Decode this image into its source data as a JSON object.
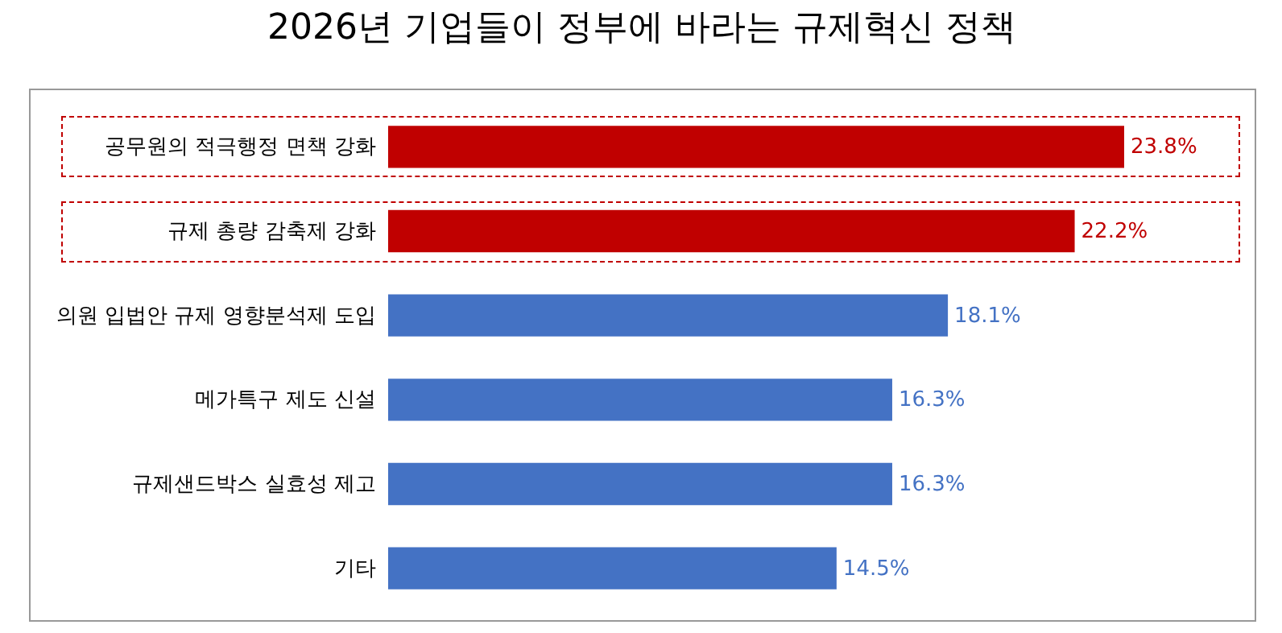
{
  "chart_data": {
    "type": "bar",
    "orientation": "horizontal",
    "title": "2026년 기업들이 정부에 바라는 규제혁신 정책",
    "categories": [
      "공무원의 적극행정 면책 강화",
      "규제 총량 감축제 강화",
      "의원 입법안 규제 영향분석제 도입",
      "메가특구 제도 신설",
      "규제샌드박스 실효성 제고",
      "기타"
    ],
    "values": [
      23.8,
      22.2,
      18.1,
      16.3,
      16.3,
      14.5
    ],
    "colors": [
      "#c00000",
      "#c00000",
      "#4472c4",
      "#4472c4",
      "#4472c4",
      "#4472c4"
    ],
    "value_labels": [
      "23.8%",
      "22.2%",
      "18.1%",
      "16.3%",
      "16.3%",
      "14.5%"
    ]
  }
}
